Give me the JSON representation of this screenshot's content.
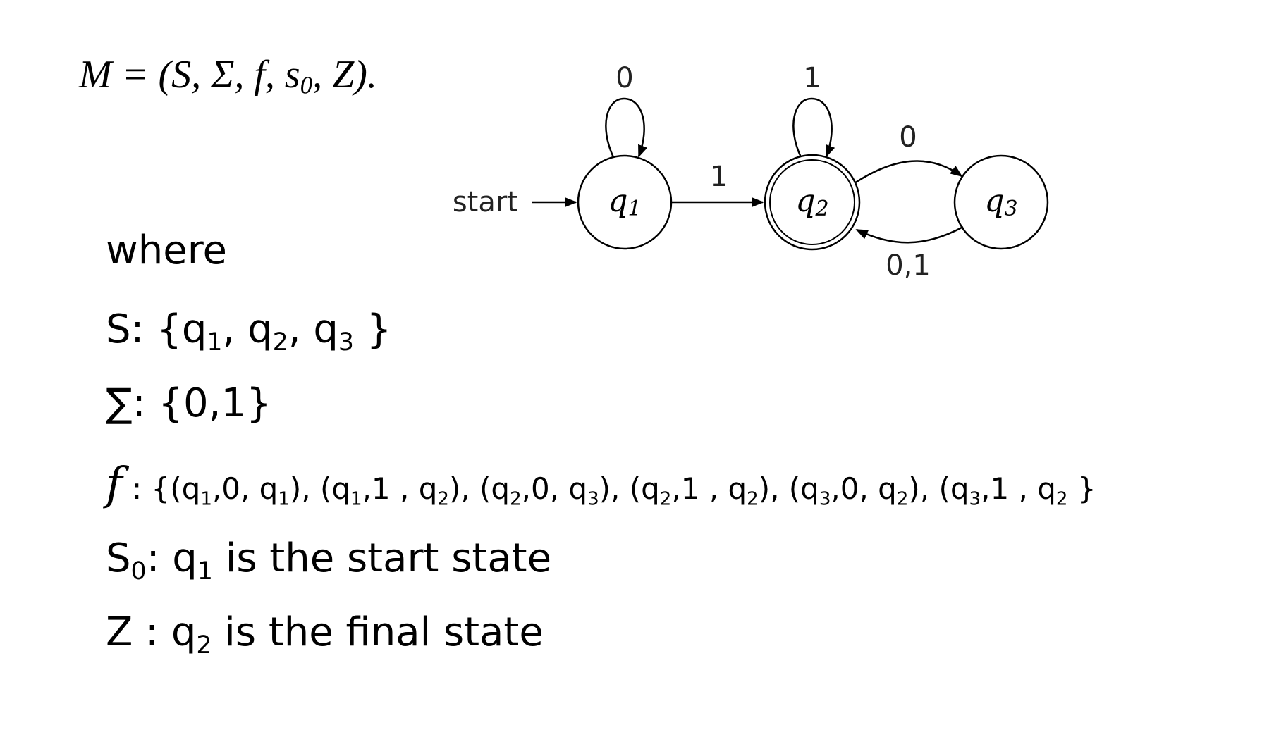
{
  "formula": "M = (S, Σ, f, s0, Z).",
  "diagram": {
    "start_label": "start",
    "states": [
      {
        "id": "q1",
        "label": "q1",
        "start": true,
        "final": false
      },
      {
        "id": "q2",
        "label": "q2",
        "start": false,
        "final": true
      },
      {
        "id": "q3",
        "label": "q3",
        "start": false,
        "final": false
      }
    ],
    "transitions": [
      {
        "from": "q1",
        "to": "q1",
        "label": "0"
      },
      {
        "from": "q1",
        "to": "q2",
        "label": "1"
      },
      {
        "from": "q2",
        "to": "q2",
        "label": "1"
      },
      {
        "from": "q2",
        "to": "q3",
        "label": "0"
      },
      {
        "from": "q3",
        "to": "q2",
        "label": "0,1"
      }
    ]
  },
  "text": {
    "where": "where",
    "S_line": "S: {q1, q2, q3 }",
    "sigma_line": "∑: {0,1}",
    "f_line": "f : {(q1,0, q1), (q1,1 , q2), (q2,0, q3), (q2,1 , q2), (q3,0, q2), (q3,1 , q2 }",
    "s0_line": "S0: q1 is the start state",
    "z_line": "Z : q2 is the final state"
  }
}
